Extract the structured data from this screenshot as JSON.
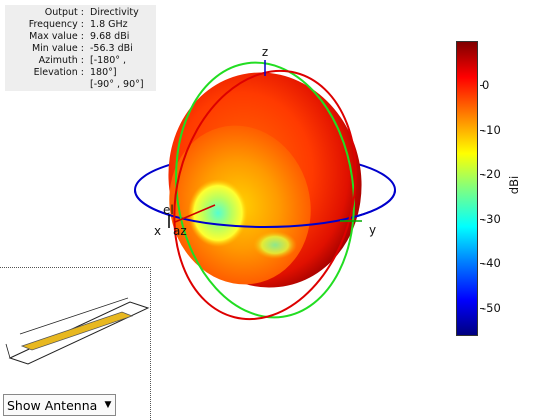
{
  "info": {
    "rows": [
      {
        "key": "Output :",
        "value": "Directivity"
      },
      {
        "key": "Frequency :",
        "value": "1.8 GHz"
      },
      {
        "key": "Max value :",
        "value": "9.68 dBi"
      },
      {
        "key": "Min value :",
        "value": "-56.3 dBi"
      },
      {
        "key": "Azimuth :",
        "value": "[-180° ,"
      },
      {
        "key": "Elevation :",
        "value": "180°]"
      },
      {
        "key": "",
        "value": "[-90° , 90°]"
      }
    ]
  },
  "axes": {
    "x_label": "x",
    "y_label": "y",
    "z_label": "z",
    "el_label": "el",
    "az_label": "az"
  },
  "colorbar": {
    "unit": "dBi",
    "ticks": [
      "0",
      "-10",
      "-20",
      "-30",
      "-40",
      "-50"
    ],
    "colors": [
      "#00007f",
      "#0000ff",
      "#0080ff",
      "#00ffff",
      "#80ff80",
      "#ffff00",
      "#ff8000",
      "#ff0000",
      "#7f0000"
    ]
  },
  "antenna_view": {
    "dropdown_label": "Show Antenna",
    "dropdown_icon": "triangle-down-icon"
  }
}
